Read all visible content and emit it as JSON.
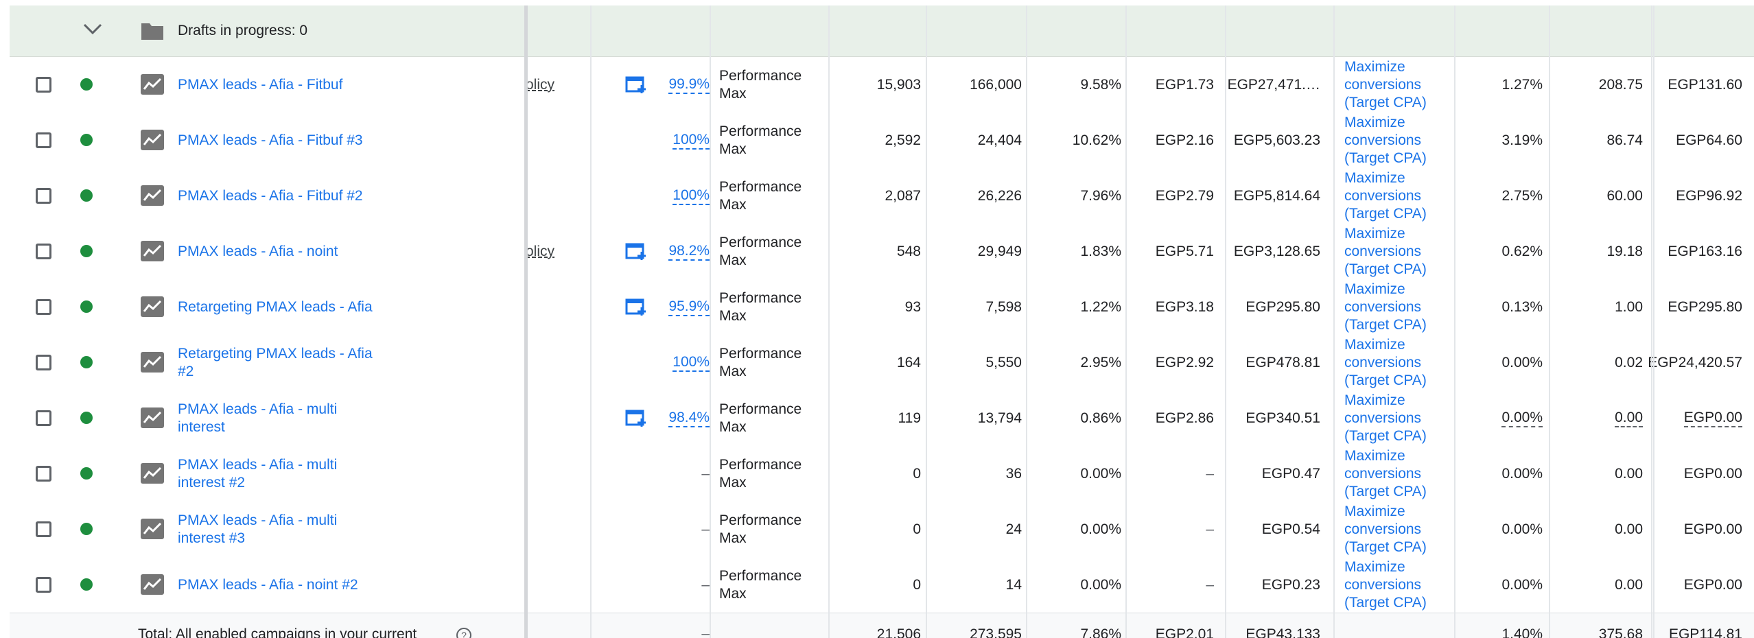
{
  "drafts_label": "Drafts in progress: 0",
  "campaign_type_label": "Performance Max",
  "bid_strategy_label": "Maximize conversions (Target CPA)",
  "colors": {
    "link": "#1a73e8",
    "status": "#1e8e3e",
    "draft_bg": "#e8f0e9"
  },
  "rows": [
    {
      "name": "PMAX leads - Afia - Fitbuf",
      "status_col": "olicy",
      "opt_icon": true,
      "opt": "99.9%",
      "c1": "15,903",
      "c2": "166,000",
      "c3": "9.58%",
      "c4": "EGP1.73",
      "c5": "EGP27,471.…",
      "c6": "1.27%",
      "c7": "208.75",
      "c8": "EGP131.60"
    },
    {
      "name": "PMAX leads - Afia - Fitbuf #3",
      "status_col": "",
      "opt_icon": false,
      "opt": "100%",
      "c1": "2,592",
      "c2": "24,404",
      "c3": "10.62%",
      "c4": "EGP2.16",
      "c5": "EGP5,603.23",
      "c6": "3.19%",
      "c7": "86.74",
      "c8": "EGP64.60"
    },
    {
      "name": "PMAX leads - Afia - Fitbuf #2",
      "status_col": "",
      "opt_icon": false,
      "opt": "100%",
      "c1": "2,087",
      "c2": "26,226",
      "c3": "7.96%",
      "c4": "EGP2.79",
      "c5": "EGP5,814.64",
      "c6": "2.75%",
      "c7": "60.00",
      "c8": "EGP96.92"
    },
    {
      "name": "PMAX leads - Afia - noint",
      "status_col": "olicy",
      "opt_icon": true,
      "opt": "98.2%",
      "c1": "548",
      "c2": "29,949",
      "c3": "1.83%",
      "c4": "EGP5.71",
      "c5": "EGP3,128.65",
      "c6": "0.62%",
      "c7": "19.18",
      "c8": "EGP163.16"
    },
    {
      "name": "Retargeting PMAX leads - Afia",
      "status_col": "",
      "opt_icon": true,
      "opt": "95.9%",
      "c1": "93",
      "c2": "7,598",
      "c3": "1.22%",
      "c4": "EGP3.18",
      "c5": "EGP295.80",
      "c6": "0.13%",
      "c7": "1.00",
      "c8": "EGP295.80"
    },
    {
      "name": "Retargeting PMAX leads - Afia #2",
      "status_col": "",
      "opt_icon": false,
      "opt": "100%",
      "c1": "164",
      "c2": "5,550",
      "c3": "2.95%",
      "c4": "EGP2.92",
      "c5": "EGP478.81",
      "c6": "0.00%",
      "c7": "0.02",
      "c8": "EGP24,420.57"
    },
    {
      "name": "PMAX leads - Afia - multi interest",
      "status_col": "",
      "opt_icon": true,
      "opt": "98.4%",
      "c1": "119",
      "c2": "13,794",
      "c3": "0.86%",
      "c4": "EGP2.86",
      "c5": "EGP340.51",
      "c6": "0.00%",
      "c7": "0.00",
      "c8": "EGP0.00"
    },
    {
      "name": "PMAX leads - Afia - multi interest #2",
      "status_col": "",
      "opt_icon": false,
      "opt": "–",
      "c1": "0",
      "c2": "36",
      "c3": "0.00%",
      "c4": "–",
      "c5": "EGP0.47",
      "c6": "0.00%",
      "c7": "0.00",
      "c8": "EGP0.00"
    },
    {
      "name": "PMAX leads - Afia - multi interest #3",
      "status_col": "",
      "opt_icon": false,
      "opt": "–",
      "c1": "0",
      "c2": "24",
      "c3": "0.00%",
      "c4": "–",
      "c5": "EGP0.54",
      "c6": "0.00%",
      "c7": "0.00",
      "c8": "EGP0.00"
    },
    {
      "name": "PMAX leads - Afia - noint #2",
      "status_col": "",
      "opt_icon": false,
      "opt": "–",
      "c1": "0",
      "c2": "14",
      "c3": "0.00%",
      "c4": "–",
      "c5": "EGP0.23",
      "c6": "0.00%",
      "c7": "0.00",
      "c8": "EGP0.00"
    }
  ],
  "total": {
    "label": "Total: All enabled campaigns in your current",
    "opt": "–",
    "c1": "21,506",
    "c2": "273,595",
    "c3": "7.86%",
    "c4": "EGP2.01",
    "c5": "EGP43,133",
    "c6": "1.40%",
    "c7": "375.68",
    "c8": "EGP114.81"
  }
}
